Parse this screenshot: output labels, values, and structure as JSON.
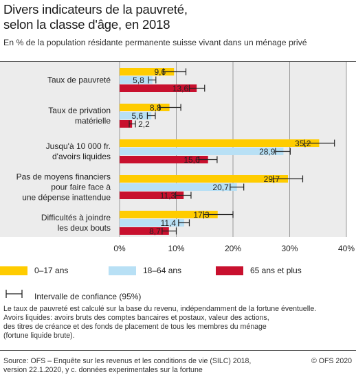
{
  "title_line1": "Divers indicateurs de la pauvreté,",
  "title_line2": "selon la classe d'âge, en 2018",
  "subtitle": "En % de la population résidante permanente suisse vivant dans un ménage privé",
  "chart_data": {
    "type": "bar",
    "orientation": "horizontal",
    "categories": [
      [
        "Taux de pauvreté"
      ],
      [
        "Taux de privation",
        "matérielle"
      ],
      [
        "Jusqu'à 10 000 fr.",
        "d'avoirs liquides"
      ],
      [
        "Pas de moyens financiers",
        "pour faire face à",
        "une dépense inattendue"
      ],
      [
        "Difficultés à joindre",
        "les deux bouts"
      ]
    ],
    "series": [
      {
        "name": "0–17 ans",
        "color": "#ffcc00",
        "values": [
          9.6,
          8.8,
          35.2,
          29.7,
          17.3
        ],
        "ci_low": [
          7.7,
          7.0,
          32.6,
          27.1,
          14.8
        ],
        "ci_high": [
          11.7,
          10.8,
          37.9,
          32.3,
          20.0
        ]
      },
      {
        "name": "18–64 ans",
        "color": "#b8e0f5",
        "values": [
          5.8,
          5.6,
          28.9,
          20.7,
          11.4
        ],
        "ci_low": [
          5.1,
          4.9,
          27.5,
          19.5,
          10.4
        ],
        "ci_high": [
          6.4,
          6.3,
          30.1,
          21.9,
          12.3
        ]
      },
      {
        "name": "65 ans et plus",
        "color": "#c8102e",
        "values": [
          13.6,
          2.2,
          15.6,
          11.3,
          8.7
        ],
        "ci_low": [
          12.3,
          1.7,
          14.0,
          9.9,
          7.5
        ],
        "ci_high": [
          15.0,
          2.8,
          17.2,
          12.6,
          10.0
        ]
      }
    ],
    "xlim": [
      0,
      40
    ],
    "xticks": [
      "0%",
      "10%",
      "20%",
      "30%",
      "40%"
    ],
    "grid": true,
    "legend_position": "bottom"
  },
  "legend": {
    "ci_label": "Intervalle de confiance (95%)"
  },
  "note_lines": [
    "Le taux de pauvreté est calculé sur la base du revenu, indépendamment de la fortune éventuelle.",
    "Avoirs liquides: avoirs bruts des comptes bancaires et postaux, valeur des actions,",
    "des titres de créance et des fonds de placement de tous les membres du ménage",
    "(fortune liquide brute)."
  ],
  "source_lines": [
    "Source: OFS – Enquête sur les revenus et les conditions de vie (SILC) 2018,",
    "version 22.1.2020, y c. données experimentales sur la fortune"
  ],
  "copyright": "© OFS 2020"
}
